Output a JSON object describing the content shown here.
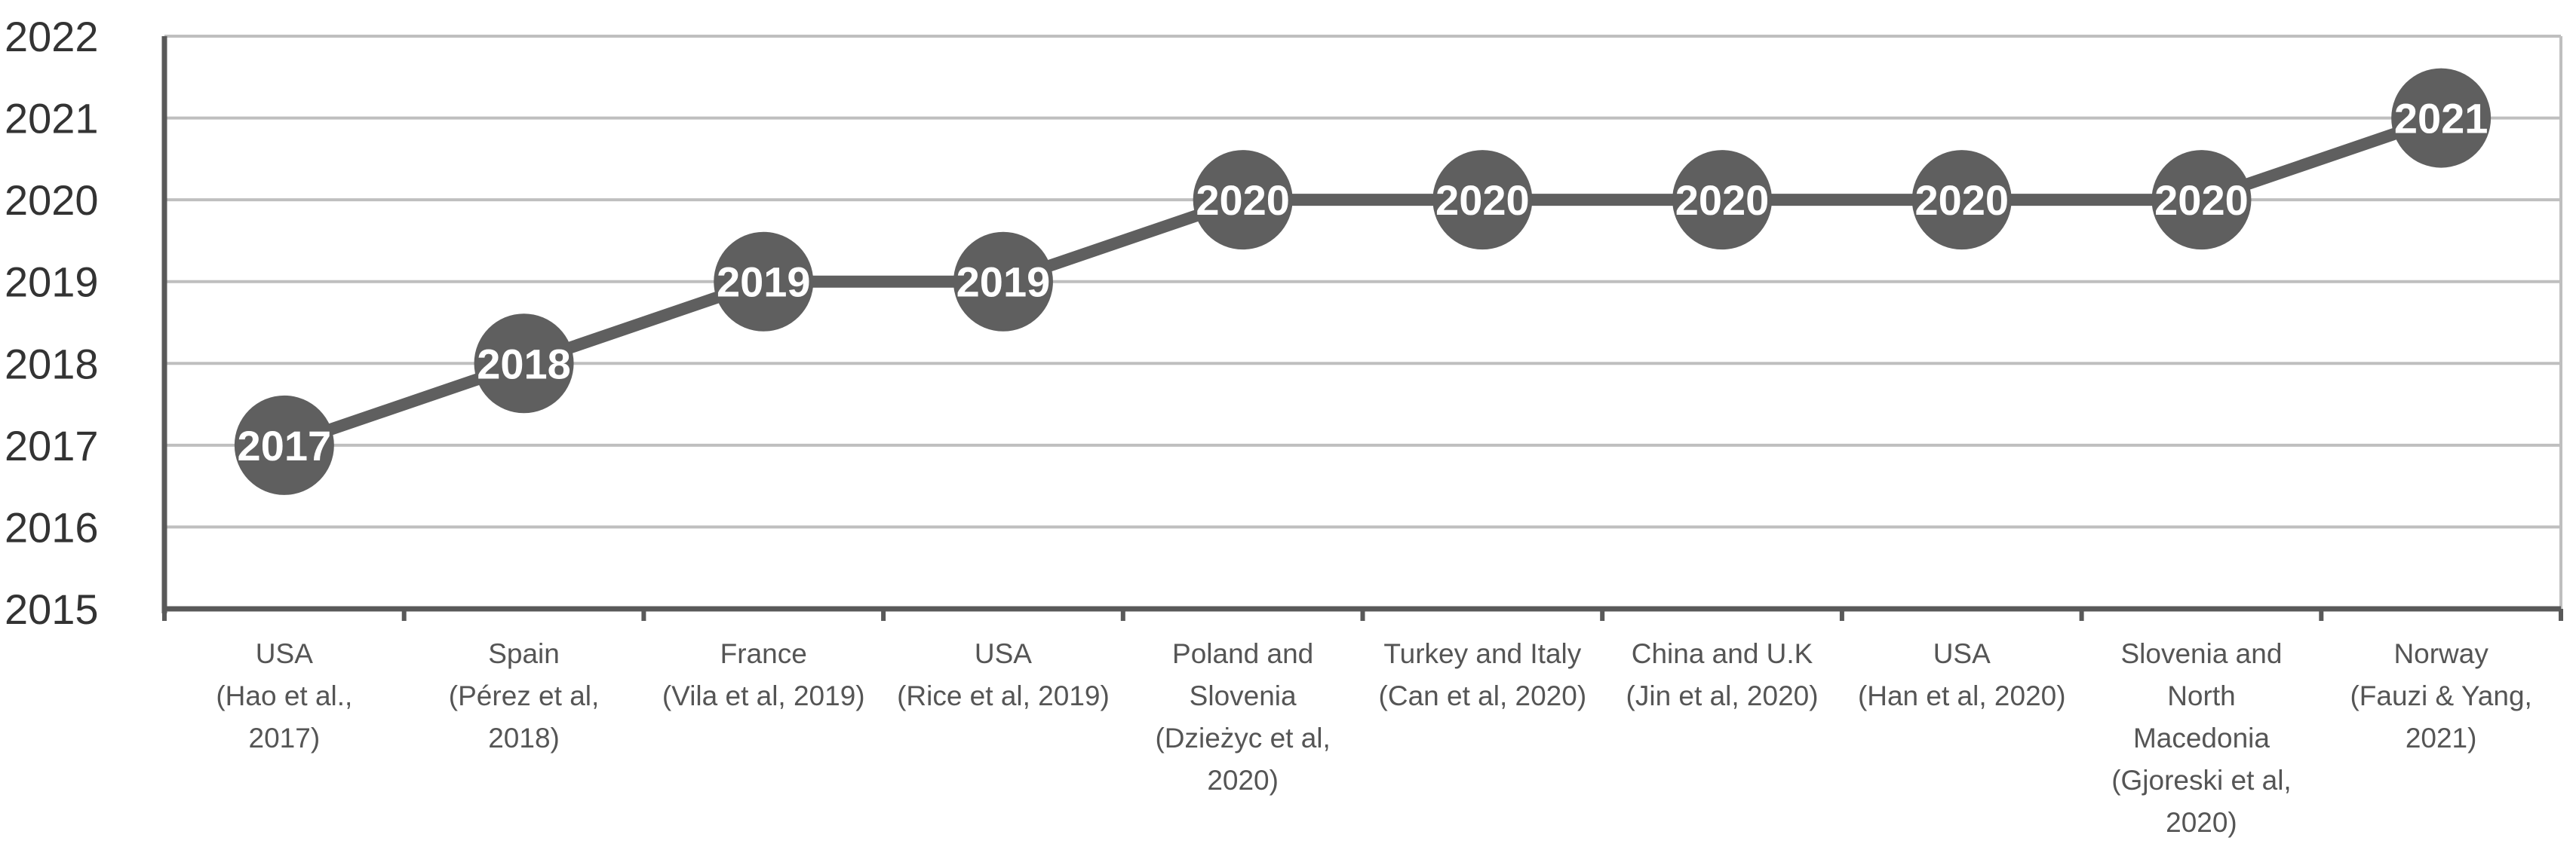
{
  "chart_data": {
    "type": "line",
    "title": "",
    "xlabel": "",
    "ylabel": "",
    "ylim": [
      2015,
      2022
    ],
    "yticks": [
      "2015",
      "2016",
      "2017",
      "2018",
      "2019",
      "2020",
      "2021",
      "2022"
    ],
    "grid": true,
    "legend": "none",
    "colors": {
      "line": "#5f5f5f",
      "marker": "#5f5f5f",
      "grid": "#bfbfbf",
      "axis": "#595959",
      "label_text": "#ffffff"
    },
    "categories": [
      [
        "USA",
        "(Hao et al.,",
        "2017)"
      ],
      [
        "Spain",
        "(Pérez et al,",
        "2018)"
      ],
      [
        "France",
        "(Vila et al, 2019)"
      ],
      [
        "USA",
        "(Rice et al, 2019)"
      ],
      [
        "Poland and",
        "Slovenia",
        "(Dzieżyc et al,",
        "2020)"
      ],
      [
        "Turkey and Italy",
        "(Can et al, 2020)"
      ],
      [
        "China and U.K",
        "(Jin et al, 2020)"
      ],
      [
        "USA",
        "(Han et al, 2020)"
      ],
      [
        "Slovenia and",
        "North",
        "Macedonia",
        "(Gjoreski et al,",
        "2020)"
      ],
      [
        "Norway",
        "(Fauzi & Yang,",
        "2021)"
      ]
    ],
    "values": [
      2017,
      2018,
      2019,
      2019,
      2020,
      2020,
      2020,
      2020,
      2020,
      2021
    ],
    "data_labels": [
      "2017",
      "2018",
      "2019",
      "2019",
      "2020",
      "2020",
      "2020",
      "2020",
      "2020",
      "2021"
    ]
  }
}
